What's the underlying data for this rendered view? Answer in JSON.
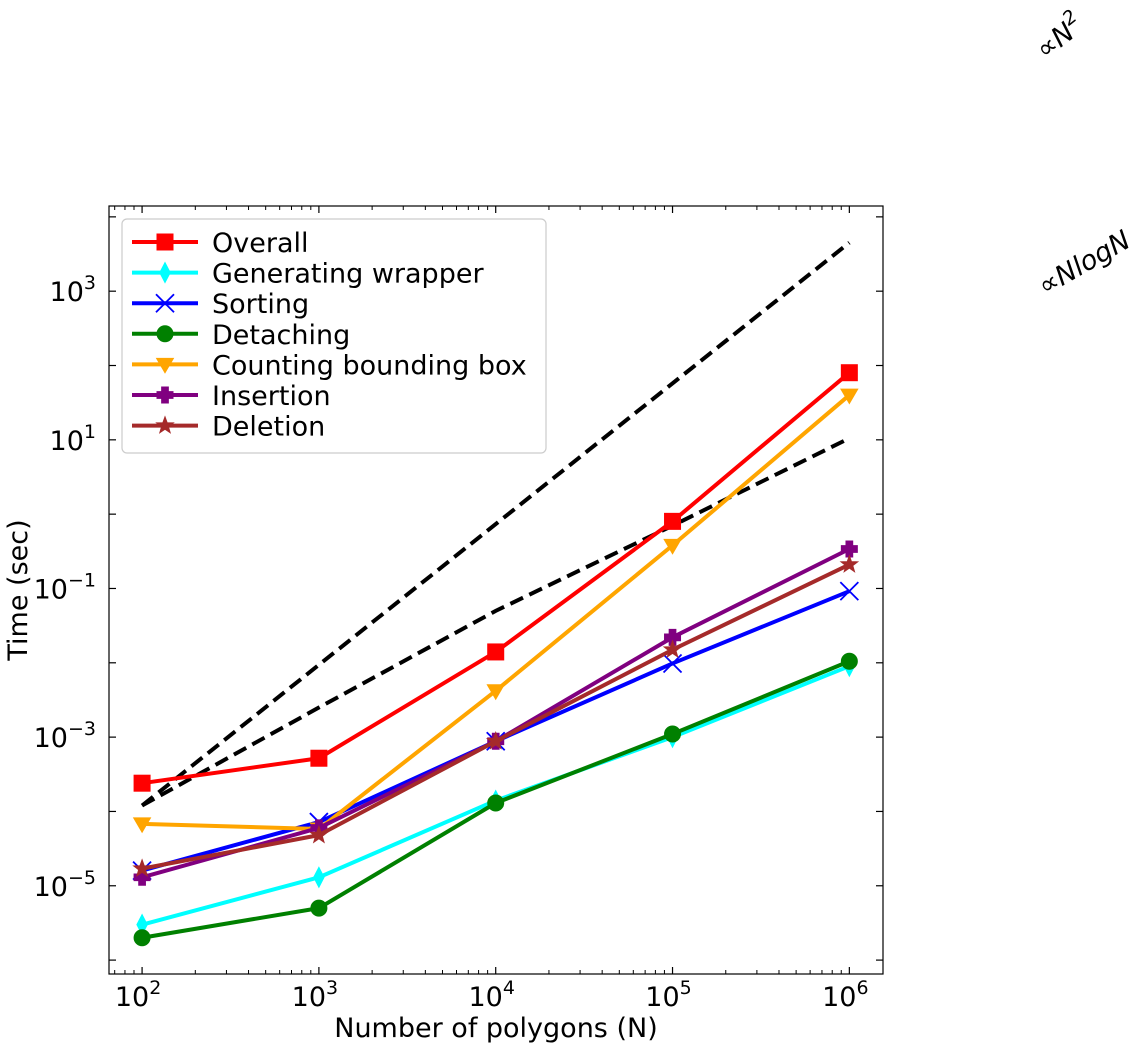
{
  "chart_data": {
    "type": "line",
    "title": "",
    "xlabel": "Number of polygons (N)",
    "ylabel": "Time (sec)",
    "xscale": "log",
    "yscale": "log",
    "xlim": [
      65,
      1550000
    ],
    "ylim": [
      6.5e-07,
      14000
    ],
    "grid": false,
    "legend_position": "top-left",
    "x_ticks": [
      {
        "base": "10",
        "exp": "2",
        "value": 100
      },
      {
        "base": "10",
        "exp": "3",
        "value": 1000
      },
      {
        "base": "10",
        "exp": "4",
        "value": 10000
      },
      {
        "base": "10",
        "exp": "5",
        "value": 100000
      },
      {
        "base": "10",
        "exp": "6",
        "value": 1000000
      }
    ],
    "y_ticks": [
      {
        "base": "10",
        "exp": "−5",
        "value": 1e-05
      },
      {
        "base": "10",
        "exp": "−3",
        "value": 0.001
      },
      {
        "base": "10",
        "exp": "−1",
        "value": 0.1
      },
      {
        "base": "10",
        "exp": "1",
        "value": 10
      },
      {
        "base": "10",
        "exp": "3",
        "value": 1000
      }
    ],
    "x": [
      100,
      1000,
      10000,
      100000,
      1000000
    ],
    "series": [
      {
        "name": "Overall",
        "color": "#ff0000",
        "marker": "square",
        "values": [
          0.00024,
          0.00052,
          0.014,
          0.8,
          80
        ]
      },
      {
        "name": "Generating wrapper",
        "color": "#00ffff",
        "marker": "thin-diamond",
        "values": [
          3e-06,
          1.3e-05,
          0.00014,
          0.001,
          0.009
        ]
      },
      {
        "name": "Sorting",
        "color": "#0000ff",
        "marker": "x",
        "values": [
          1.6e-05,
          7.2e-05,
          0.00088,
          0.0098,
          0.092
        ]
      },
      {
        "name": "Detaching",
        "color": "#008000",
        "marker": "circle",
        "values": [
          2e-06,
          5e-06,
          0.00013,
          0.0011,
          0.0105
        ]
      },
      {
        "name": "Counting bounding box",
        "color": "#ffa500",
        "marker": "triangle-down",
        "values": [
          6.8e-05,
          5.8e-05,
          0.0042,
          0.38,
          40
        ]
      },
      {
        "name": "Insertion",
        "color": "#800080",
        "marker": "plus-filled",
        "values": [
          1.3e-05,
          6e-05,
          0.00088,
          0.022,
          0.34
        ]
      },
      {
        "name": "Deletion",
        "color": "#a52a2a",
        "marker": "star",
        "values": [
          1.7e-05,
          4.8e-05,
          0.00088,
          0.015,
          0.21
        ]
      }
    ],
    "reference_lines": [
      {
        "label": "∝N²",
        "label_base": "∝N",
        "label_sup": "2",
        "color": "#000000",
        "style": "dashed",
        "x": [
          100,
          1000000
        ],
        "y": [
          0.00012,
          4500
        ]
      },
      {
        "label": "∝NlogN",
        "color": "#000000",
        "style": "dashed",
        "x": [
          100,
          1000,
          10000,
          100000,
          1000000
        ],
        "y": [
          0.00012,
          0.0025,
          0.05,
          0.7,
          10.5
        ]
      }
    ]
  }
}
